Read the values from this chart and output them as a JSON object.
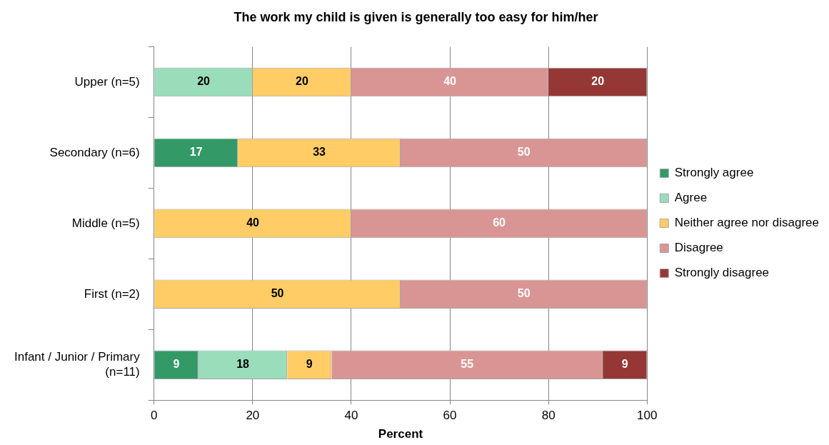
{
  "chart_data": {
    "type": "bar",
    "orientation": "horizontal",
    "stacked": true,
    "title": "The work my child is given is generally too easy for him/her",
    "xlabel": "Percent",
    "categories": [
      "Upper (n=5)",
      "Secondary (n=6)",
      "Middle (n=5)",
      "First (n=2)",
      "Infant / Junior / Primary (n=11)"
    ],
    "series": [
      {
        "name": "Strongly agree",
        "color": "#339966",
        "values": [
          null,
          17,
          null,
          null,
          9
        ]
      },
      {
        "name": "Agree",
        "color": "#99ddbb",
        "values": [
          20,
          null,
          null,
          null,
          18
        ]
      },
      {
        "name": "Neither agree nor disagree",
        "color": "#ffcc66",
        "values": [
          20,
          33,
          40,
          50,
          9
        ]
      },
      {
        "name": "Disagree",
        "color": "#d99594",
        "values": [
          40,
          50,
          60,
          50,
          55
        ]
      },
      {
        "name": "Strongly disagree",
        "color": "#953735",
        "values": [
          20,
          null,
          null,
          null,
          9
        ]
      }
    ],
    "xlim": [
      0,
      100
    ],
    "xticks": [
      0,
      20,
      40,
      60,
      80,
      100
    ],
    "grid": "x",
    "legend": "right",
    "data_labels": true
  }
}
